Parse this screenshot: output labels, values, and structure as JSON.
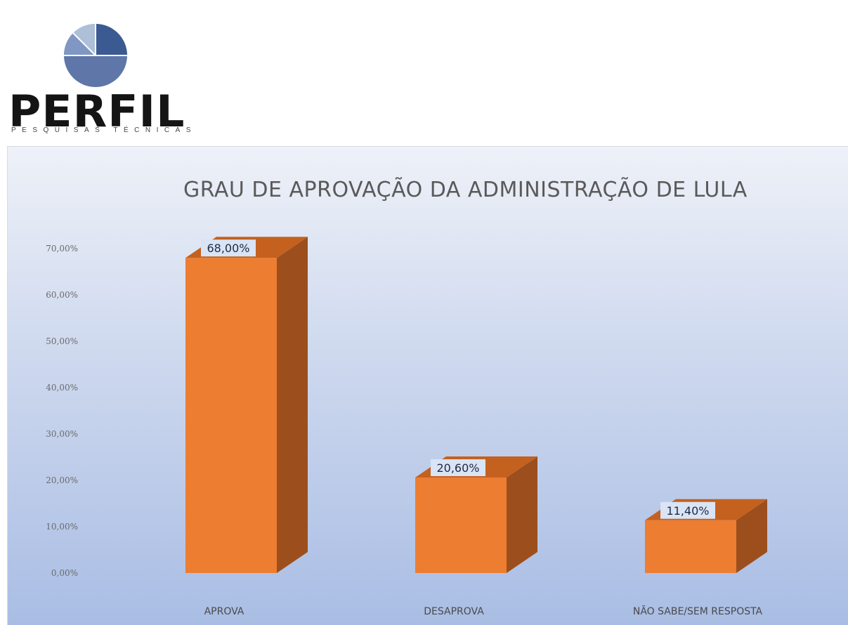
{
  "logo": {
    "wordmark": "PERFIL",
    "tagline": "PESQUISAS TÉCNICAS",
    "colors": {
      "light": "#aebfd8",
      "mid": "#7f97c2",
      "dark": "#3c5a92",
      "base": "#5f76a8"
    }
  },
  "chart_data": {
    "type": "bar",
    "title": "GRAU DE APROVAÇÃO DA ADMINISTRAÇÃO DE LULA",
    "categories": [
      "APROVA",
      "DESAPROVA",
      "NÃO SABE/SEM RESPOSTA"
    ],
    "values": [
      68.0,
      20.6,
      11.4
    ],
    "data_labels": [
      "68,00%",
      "20,60%",
      "11,40%"
    ],
    "ylim": [
      0,
      70
    ],
    "yticks": [
      "0,00%",
      "10,00%",
      "20,00%",
      "30,00%",
      "40,00%",
      "50,00%",
      "60,00%",
      "70,00%"
    ],
    "xlabel": "",
    "ylabel": "",
    "grid": false,
    "legend": "none",
    "style": "3d-column",
    "colors": {
      "bar_front": "#ed7d31",
      "bar_side": "#9c4f1d",
      "bar_top": "#c4611f",
      "label_bg": "#d9e4f4"
    }
  }
}
